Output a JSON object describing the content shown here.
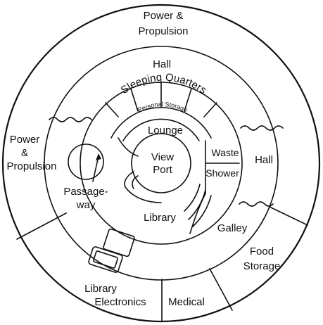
{
  "labels": {
    "power_top_1": "Power &",
    "power_top_2": "Propulsion",
    "power_left_1": "Power",
    "power_left_2": "&",
    "power_left_3": "Propulsion",
    "hall_top": "Hall",
    "hall_right": "Hall",
    "sleeping_quarters": "Sleeping Quarters",
    "personal_storage": "Personal Storage",
    "lounge": "Lounge",
    "view_1": "View",
    "view_2": "Port",
    "waste": "Waste",
    "shower": "Shower",
    "passage_1": "Passage-",
    "passage_2": "way",
    "library": "Library",
    "galley": "Galley",
    "food_1": "Food",
    "food_2": "Storage",
    "libelec_1": "Library",
    "libelec_2": "Electronics",
    "medical": "Medical"
  }
}
